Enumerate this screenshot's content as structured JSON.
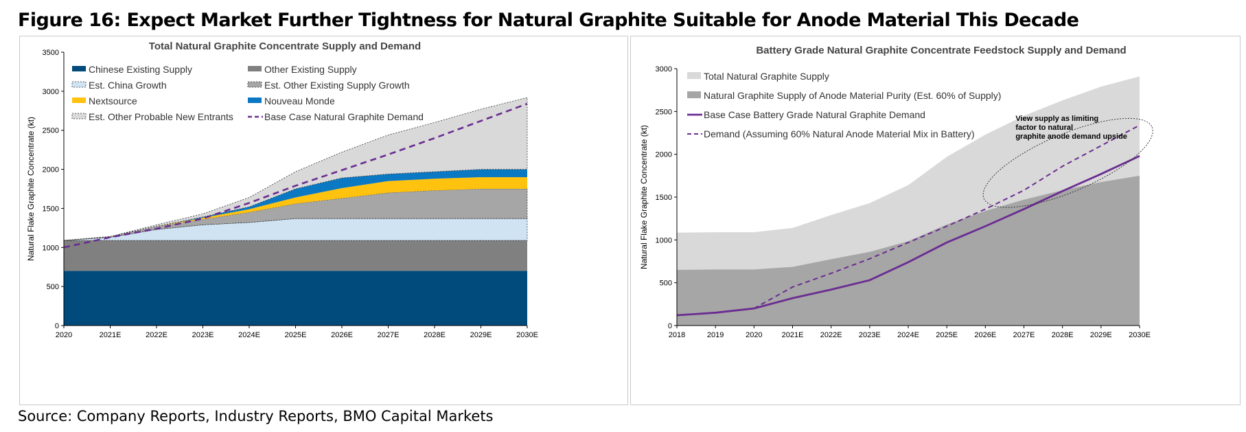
{
  "figure": {
    "title": "Figure 16: Expect Market Further Tightness for Natural Graphite Suitable for Anode Material This Decade",
    "source": "Source: Company Reports, Industry Reports, BMO Capital Markets"
  },
  "chart_data": [
    {
      "type": "area",
      "stacked": true,
      "title": "Total Natural Graphite Concentrate Supply and Demand",
      "xlabel": "",
      "ylabel": "Natural Flake Graphite Concentrate (kt)",
      "categories": [
        "2020",
        "2021E",
        "2022E",
        "2023E",
        "2024E",
        "2025E",
        "2026E",
        "2027E",
        "2028E",
        "2029E",
        "2030E"
      ],
      "ylim": [
        0,
        3500
      ],
      "yticks": [
        0,
        500,
        1000,
        1500,
        2000,
        2500,
        3000,
        3500
      ],
      "grid": false,
      "legend_position": "top-left, two columns",
      "series": [
        {
          "name": "Chinese Existing Supply",
          "color": "#004a7c",
          "style": "solid",
          "values": [
            700,
            700,
            700,
            700,
            700,
            700,
            700,
            700,
            700,
            700,
            700
          ]
        },
        {
          "name": "Other Existing Supply",
          "color": "#808080",
          "style": "solid",
          "values": [
            390,
            390,
            390,
            390,
            390,
            390,
            390,
            390,
            390,
            390,
            390
          ]
        },
        {
          "name": "Est. China Growth",
          "color": "#cfe3f3",
          "style": "dotted-outline",
          "values": [
            0,
            40,
            140,
            200,
            230,
            280,
            280,
            280,
            280,
            280,
            280
          ]
        },
        {
          "name": "Est. Other Existing Supply Growth",
          "color": "#a6a6a6",
          "style": "dotted-outline",
          "values": [
            0,
            10,
            40,
            70,
            130,
            190,
            260,
            330,
            360,
            380,
            380
          ]
        },
        {
          "name": "Nextsource",
          "color": "#ffc20e",
          "style": "solid",
          "values": [
            0,
            0,
            0,
            20,
            40,
            80,
            130,
            150,
            150,
            150,
            150
          ]
        },
        {
          "name": "Nouveau Monde",
          "color": "#0a78c2",
          "style": "solid",
          "values": [
            0,
            0,
            0,
            10,
            30,
            110,
            130,
            90,
            90,
            100,
            100
          ]
        },
        {
          "name": "Est. Other Probable New Entrants",
          "color": "#d9d9d9",
          "style": "dotted-outline",
          "values": [
            0,
            0,
            20,
            40,
            120,
            220,
            330,
            500,
            630,
            770,
            920
          ]
        }
      ],
      "lines": [
        {
          "name": "Base Case Natural Graphite Demand",
          "color": "#6a2c91",
          "style": "dashed",
          "values": [
            1000,
            1130,
            1240,
            1370,
            1570,
            1790,
            1990,
            2190,
            2400,
            2620,
            2840
          ]
        }
      ],
      "legend_order": [
        "Chinese Existing Supply",
        "Other Existing Supply",
        "Est. China Growth",
        "Est. Other Existing Supply Growth",
        "Nextsource",
        "Nouveau Monde",
        "Est. Other Probable New Entrants",
        "Base Case Natural Graphite Demand"
      ]
    },
    {
      "type": "area",
      "stacked": false,
      "title": "Battery Grade Natural Graphite Concentrate Feedstock Supply and Demand",
      "xlabel": "",
      "ylabel": "Natural Flake Graphite Concentrate (kt)",
      "categories": [
        "2018",
        "2019",
        "2020",
        "2021E",
        "2022E",
        "2023E",
        "2024E",
        "2025E",
        "2026E",
        "2027E",
        "2028E",
        "2029E",
        "2030E"
      ],
      "ylim": [
        0,
        3000
      ],
      "yticks": [
        0,
        500,
        1000,
        1500,
        2000,
        2500,
        3000
      ],
      "grid": false,
      "legend_position": "top-left",
      "series": [
        {
          "name": "Total Natural Graphite Supply",
          "color": "#d9d9d9",
          "kind": "area",
          "values": [
            1085,
            1090,
            1090,
            1140,
            1290,
            1430,
            1640,
            1970,
            2230,
            2450,
            2630,
            2790,
            2910
          ]
        },
        {
          "name": "Natural Graphite Supply of Anode Material Purity (Est. 60% of Supply)",
          "color": "#a6a6a6",
          "kind": "area",
          "values": [
            650,
            655,
            655,
            685,
            775,
            860,
            985,
            1180,
            1340,
            1470,
            1580,
            1675,
            1750
          ]
        },
        {
          "name": "Base Case Battery Grade Natural Graphite Demand",
          "color": "#6a2c91",
          "kind": "line",
          "style": "solid",
          "values": [
            120,
            150,
            200,
            320,
            420,
            530,
            740,
            970,
            1160,
            1360,
            1570,
            1770,
            1980
          ]
        },
        {
          "name": "Demand (Assuming 60% Natural Anode Material Mix in Battery)",
          "color": "#6a2c91",
          "kind": "line",
          "style": "dashed",
          "x_start": "2020",
          "values": [
            null,
            null,
            200,
            450,
            610,
            780,
            970,
            1160,
            1360,
            1580,
            1860,
            2100,
            2340
          ]
        }
      ],
      "annotations": [
        {
          "text": "View supply as limiting factor to natural graphite anode demand upside"
        }
      ]
    }
  ]
}
